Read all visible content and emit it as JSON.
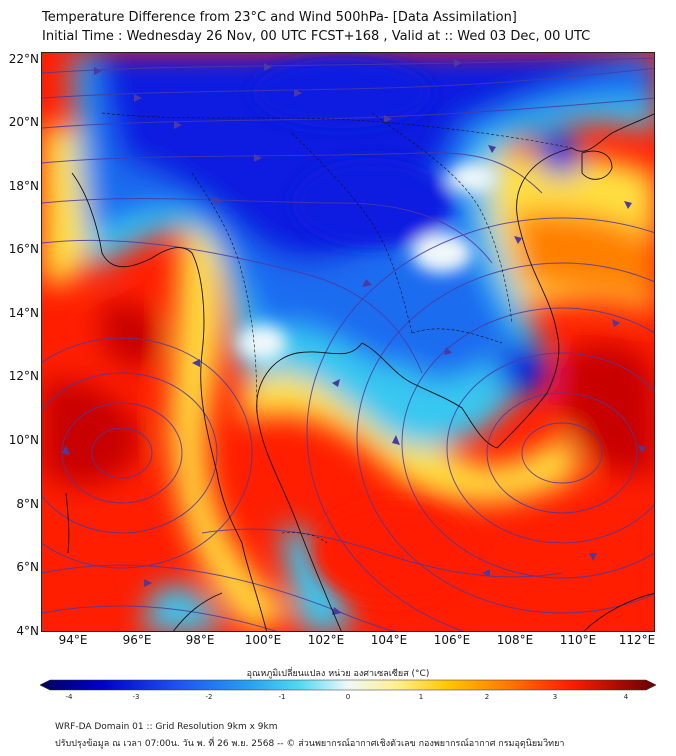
{
  "header": {
    "title_line1": "Temperature Difference from 23°C and Wind 500hPa- [Data Assimilation]",
    "title_line2": "Initial Time : Wednesday 26 Nov, 00 UTC FCST+168 , Valid at ::  Wed 03 Dec, 00 UTC"
  },
  "map": {
    "lat_labels": [
      "22°N",
      "20°N",
      "18°N",
      "16°N",
      "14°N",
      "12°N",
      "10°N",
      "8°N",
      "6°N",
      "4°N"
    ],
    "lon_labels": [
      "94°E",
      "96°E",
      "98°E",
      "100°E",
      "102°E",
      "104°E",
      "106°E",
      "108°E",
      "110°E",
      "112°E"
    ],
    "colors": {
      "cold_deep": "#0a1ee0",
      "cold": "#1e6cf0",
      "cool": "#38c8f0",
      "neutral": "#f0f8fa",
      "warm": "#ffe040",
      "hot": "#ff8000",
      "very_hot": "#ff1e00",
      "extreme": "#c80000",
      "streamline": "#4b3aa0",
      "coastline": "#111111"
    },
    "layers": [
      "temperature-difference-field",
      "wind-streamlines-500hPa",
      "coastlines-and-borders"
    ]
  },
  "colorbar": {
    "title": "อุณหภูมิเปลี่ยนแปลง หน่วย องศาเซลเซียส (°C)",
    "ticks": [
      "-4",
      "-3",
      "-2",
      "-1",
      "0",
      "1",
      "2",
      "3",
      "4"
    ],
    "min": -4,
    "max": 4
  },
  "footer": {
    "line1": "WRF-DA Domain 01 :: Grid Resolution 9km x 9km",
    "line2": "ปรับปรุงข้อมูล ณ เวลา 07:00น. วัน พ. ที่ 26 พ.ย. 2568 -- © ส่วนพยากรณ์อากาศเชิงตัวเลข กองพยากรณ์อากาศ กรมอุตุนิยมวิทยา"
  }
}
